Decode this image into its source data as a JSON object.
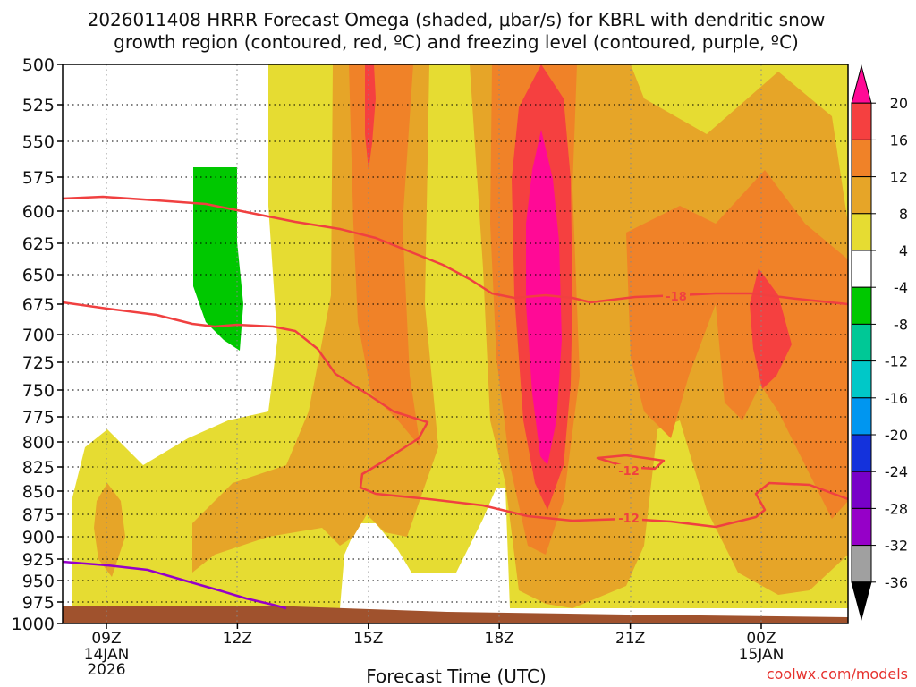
{
  "chart_data": {
    "type": "filled-contour",
    "title_line1": "2026011408 HRRR Forecast Omega (shaded, μbar/s) for KBRL with dendritic snow",
    "title_line2": "growth region (contoured, red, ºC) and freezing level (contoured, purple, ºC)",
    "xlabel": "Forecast Time (UTC)",
    "ylabel": "",
    "credit": "coolwx.com/models",
    "y_ticks": [
      "500",
      "525",
      "550",
      "575",
      "600",
      "625",
      "650",
      "675",
      "700",
      "725",
      "750",
      "775",
      "800",
      "825",
      "850",
      "875",
      "900",
      "925",
      "950",
      "975",
      "1000"
    ],
    "x_ticks": [
      {
        "label": "09Z",
        "sub1": "14JAN",
        "sub2": "2026",
        "time": 9
      },
      {
        "label": "12Z",
        "sub1": "",
        "sub2": "",
        "time": 12
      },
      {
        "label": "15Z",
        "sub1": "",
        "sub2": "",
        "time": 15
      },
      {
        "label": "18Z",
        "sub1": "",
        "sub2": "",
        "time": 18
      },
      {
        "label": "21Z",
        "sub1": "",
        "sub2": "",
        "time": 21
      },
      {
        "label": "00Z",
        "sub1": "15JAN",
        "sub2": "",
        "time": 24
      }
    ],
    "x_range_hours": [
      8,
      26
    ],
    "y_range_hpa": [
      500,
      1000
    ],
    "colorbar": {
      "labels": [
        "20",
        "16",
        "12",
        "8",
        "4",
        "-4",
        "-8",
        "-12",
        "-16",
        "-20",
        "-24",
        "-28",
        "-32",
        "-36"
      ],
      "colors": [
        "#ff0a96",
        "#f54040",
        "#f08228",
        "#e6a528",
        "#e6dc32",
        "#ffffff",
        "#00c800",
        "#00c896",
        "#00c8c8",
        "#0096f0",
        "#1432dc",
        "#7800c8",
        "#9600c8",
        "#a0a0a0",
        "#000000"
      ]
    },
    "contour_labels": {
      "dgz_upper": "-18",
      "dgz_lower": "-12",
      "dgz_closed": "-12"
    },
    "series": [
      {
        "name": "dendritic growth top (-18C)",
        "color": "#f04040"
      },
      {
        "name": "dendritic growth bottom (-12C)",
        "color": "#f04040"
      },
      {
        "name": "freezing level (0C)",
        "color": "#9600c8"
      }
    ]
  }
}
